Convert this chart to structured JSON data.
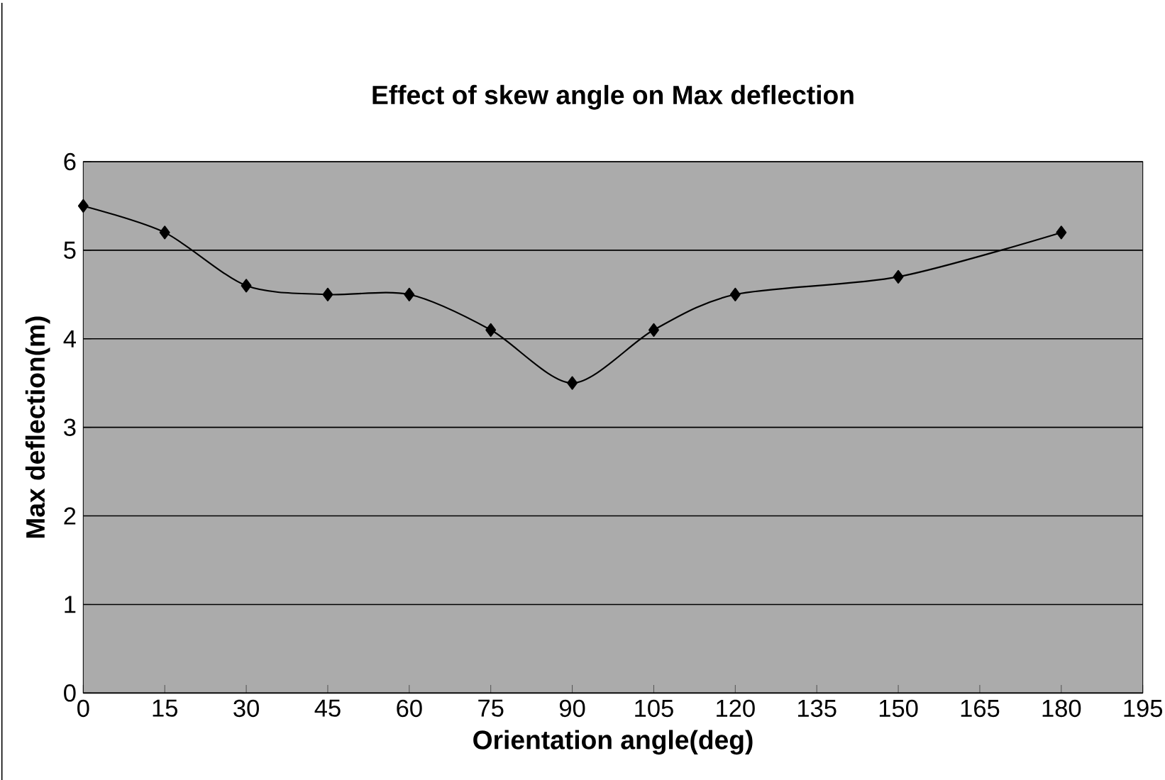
{
  "chart_data": {
    "type": "line",
    "title": "Effect of skew angle on Max deflection",
    "xlabel": "Orientation angle(deg)",
    "ylabel": "Max deflection(m)",
    "x": [
      0,
      15,
      30,
      45,
      60,
      75,
      90,
      105,
      120,
      150,
      180
    ],
    "series": [
      {
        "color": "#000000",
        "values": [
          5.5,
          5.2,
          4.6,
          4.5,
          4.5,
          4.1,
          3.5,
          4.1,
          4.5,
          4.7,
          5.2
        ]
      }
    ],
    "xlim": [
      0,
      195
    ],
    "xticks": [
      0,
      15,
      30,
      45,
      60,
      75,
      90,
      105,
      120,
      135,
      150,
      165,
      180,
      195
    ],
    "ylim": [
      0,
      6
    ],
    "yticks": [
      0,
      1,
      2,
      3,
      4,
      5,
      6
    ],
    "grid": "y",
    "marker": "diamond",
    "line_style": "solid"
  }
}
